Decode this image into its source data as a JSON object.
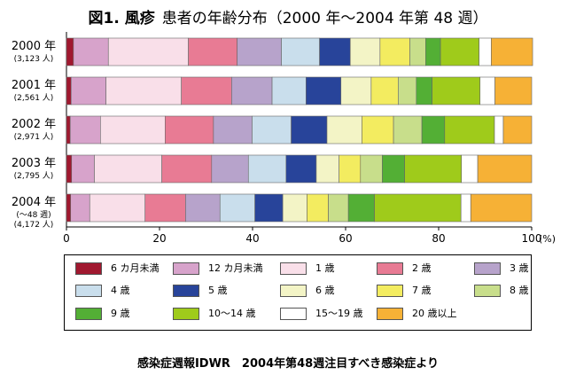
{
  "title": {
    "lead": "図1. 風疹",
    "sub": "患者の年齢分布（2000 年〜2004 年第 48 週）"
  },
  "caption": "感染症週報IDWR　2004年第48週注目すべき感染症より",
  "chart_data": {
    "type": "bar",
    "orientation": "horizontal",
    "stacked": true,
    "percent": true,
    "categories": [
      {
        "label": "2000 年",
        "sublabel": "(3,123 人)"
      },
      {
        "label": "2001 年",
        "sublabel": "(2,561 人)"
      },
      {
        "label": "2002 年",
        "sublabel": "(2,971 人)"
      },
      {
        "label": "2003 年",
        "sublabel": "(2,795 人)"
      },
      {
        "label": "2004 年",
        "sublabel": "(〜48 週)",
        "sublabel2": "(4,172 人)"
      }
    ],
    "series": [
      {
        "name": "6 カ月未満",
        "color": "#a0182f",
        "values": [
          1.5,
          1.0,
          0.8,
          1.1,
          0.9
        ]
      },
      {
        "name": "12 カ月未満",
        "color": "#d7a3cb",
        "values": [
          7.5,
          7.5,
          6.5,
          4.9,
          4.1
        ]
      },
      {
        "name": "1 歳",
        "color": "#f9dfe9",
        "values": [
          17.2,
          16.2,
          13.9,
          14.5,
          11.9
        ]
      },
      {
        "name": "2 歳",
        "color": "#e87b94",
        "values": [
          10.5,
          10.8,
          10.4,
          10.7,
          8.7
        ]
      },
      {
        "name": "3 歳",
        "color": "#b7a3cb",
        "values": [
          9.5,
          8.7,
          8.3,
          7.9,
          7.4
        ]
      },
      {
        "name": "4 歳",
        "color": "#c9deec",
        "values": [
          8.2,
          7.3,
          8.4,
          8.1,
          7.5
        ]
      },
      {
        "name": "5 歳",
        "color": "#28449a",
        "values": [
          6.6,
          7.5,
          7.7,
          6.5,
          6.0
        ]
      },
      {
        "name": "6 歳",
        "color": "#f3f4c6",
        "values": [
          6.4,
          6.5,
          7.5,
          4.9,
          5.2
        ]
      },
      {
        "name": "7 歳",
        "color": "#f3ec60",
        "values": [
          6.4,
          5.8,
          6.8,
          4.6,
          4.6
        ]
      },
      {
        "name": "8 歳",
        "color": "#c8de8b",
        "values": [
          3.4,
          3.9,
          6.1,
          4.7,
          4.3
        ]
      },
      {
        "name": "9 歳",
        "color": "#53af35",
        "values": [
          3.2,
          3.4,
          4.9,
          4.8,
          5.6
        ]
      },
      {
        "name": "10〜14 歳",
        "color": "#9fcb1b",
        "values": [
          8.3,
          10.3,
          10.7,
          12.2,
          18.6
        ]
      },
      {
        "name": "15〜19 歳",
        "color": "#ffffff",
        "values": [
          2.6,
          3.2,
          1.9,
          3.5,
          2.1
        ]
      },
      {
        "name": "20 歳以上",
        "color": "#f6b136",
        "values": [
          8.9,
          7.9,
          6.1,
          11.6,
          13.1
        ]
      }
    ],
    "x_ticks": [
      "0",
      "20",
      "40",
      "60",
      "80",
      "100"
    ],
    "x_unit": "(%)",
    "xlim": [
      0,
      100
    ],
    "grid": false,
    "legend_position": "bottom"
  }
}
